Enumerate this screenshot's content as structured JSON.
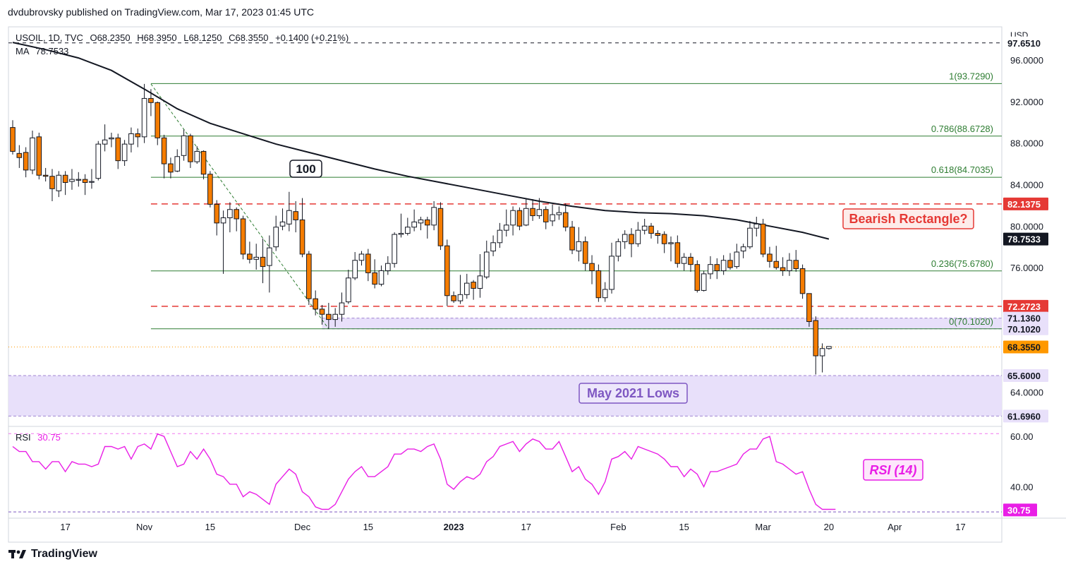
{
  "header": {
    "published": "dvdubrovsky published on TradingView.com, Mar 17, 2023 01:45 UTC"
  },
  "legend": {
    "symbol": "USOIL, 1D, TVC",
    "open": "O68.2350",
    "high": "H68.3950",
    "low": "L68.1250",
    "close": "C68.3550",
    "change": "+0.1400 (+0.21%)",
    "ma_label": "MA",
    "ma_value": "78.7533",
    "rsi_label": "RSI",
    "rsi_value": "30.75"
  },
  "footer": {
    "brand": "TradingView"
  },
  "colors": {
    "up": "#ffffff",
    "down": "#f57c00",
    "candle_border": "#131722",
    "ma": "#131722",
    "fib": "#2e7d32",
    "red_dash": "#e53935",
    "zone": "#e8e0fa",
    "zone_border": "#7e57c2",
    "rsi": "#e91ee6",
    "last_price": "#ff9800"
  },
  "chart_data": [
    {
      "type": "candlestick",
      "title": "USOIL, 1D, TVC",
      "currency": "USD",
      "ylim": [
        60.7,
        99.2
      ],
      "y_ticks": [
        {
          "v": 96,
          "label": "96.0000"
        },
        {
          "v": 92,
          "label": "92.0000"
        },
        {
          "v": 88,
          "label": "88.0000"
        },
        {
          "v": 84,
          "label": "84.0000"
        },
        {
          "v": 80,
          "label": "80.0000"
        },
        {
          "v": 76,
          "label": "76.0000"
        },
        {
          "v": 64,
          "label": "64.0000"
        }
      ],
      "x_ticks": [
        {
          "i": 8,
          "label": "17"
        },
        {
          "i": 20,
          "label": "Nov"
        },
        {
          "i": 30,
          "label": "15"
        },
        {
          "i": 44,
          "label": "Dec"
        },
        {
          "i": 54,
          "label": "15"
        },
        {
          "i": 67,
          "label": "2023"
        },
        {
          "i": 78,
          "label": "17"
        },
        {
          "i": 92,
          "label": "Feb"
        },
        {
          "i": 102,
          "label": "15"
        },
        {
          "i": 114,
          "label": "Mar"
        },
        {
          "i": 124,
          "label": "20"
        },
        {
          "i": 134,
          "label": "Apr"
        },
        {
          "i": 144,
          "label": "17"
        }
      ],
      "candles": [
        [
          89.5,
          87.2,
          90.2,
          86.9
        ],
        [
          87.0,
          86.6,
          87.8,
          85.6
        ],
        [
          87.1,
          85.4,
          87.6,
          84.7
        ],
        [
          85.4,
          88.5,
          89.2,
          85.0
        ],
        [
          88.6,
          84.9,
          89.0,
          84.5
        ],
        [
          84.9,
          84.8,
          85.6,
          84.3
        ],
        [
          84.8,
          83.6,
          85.5,
          82.4
        ],
        [
          83.4,
          84.9,
          85.3,
          82.8
        ],
        [
          84.9,
          84.2,
          85.3,
          83.0
        ],
        [
          84.3,
          84.5,
          85.5,
          83.5
        ],
        [
          84.5,
          84.5,
          85.2,
          83.8
        ],
        [
          84.5,
          84.2,
          85.0,
          83.0
        ],
        [
          84.3,
          84.3,
          85.5,
          83.6
        ],
        [
          84.6,
          87.9,
          88.2,
          84.4
        ],
        [
          87.9,
          88.3,
          89.8,
          87.2
        ],
        [
          88.4,
          88.5,
          89.0,
          87.6
        ],
        [
          88.5,
          86.3,
          88.9,
          85.5
        ],
        [
          86.3,
          87.9,
          88.3,
          85.8
        ],
        [
          87.9,
          88.9,
          89.5,
          87.1
        ],
        [
          88.9,
          88.6,
          89.4,
          87.6
        ],
        [
          88.6,
          92.3,
          93.7,
          88.0
        ],
        [
          92.3,
          91.9,
          93.2,
          90.6
        ],
        [
          91.9,
          88.5,
          92.0,
          87.8
        ],
        [
          88.5,
          86.0,
          88.8,
          84.6
        ],
        [
          86.0,
          85.2,
          86.6,
          84.6
        ],
        [
          85.3,
          86.7,
          87.4,
          85.2
        ],
        [
          86.8,
          88.7,
          89.3,
          86.3
        ],
        [
          88.7,
          86.2,
          88.9,
          85.6
        ],
        [
          86.2,
          87.2,
          87.7,
          86.0
        ],
        [
          87.2,
          85.0,
          87.3,
          84.5
        ],
        [
          85.0,
          82.1,
          85.3,
          81.8
        ],
        [
          82.1,
          80.3,
          82.5,
          79.1
        ],
        [
          80.3,
          80.8,
          81.5,
          75.4
        ],
        [
          80.8,
          81.6,
          82.3,
          79.4
        ],
        [
          81.6,
          80.7,
          81.8,
          79.5
        ],
        [
          80.7,
          77.3,
          81.0,
          76.8
        ],
        [
          77.3,
          76.8,
          78.5,
          76.4
        ],
        [
          76.8,
          77.0,
          78.3,
          75.8
        ],
        [
          77.0,
          76.1,
          78.8,
          74.5
        ],
        [
          76.2,
          77.9,
          79.1,
          73.6
        ],
        [
          78.0,
          79.9,
          81.0,
          77.6
        ],
        [
          80.0,
          80.4,
          81.7,
          79.6
        ],
        [
          80.2,
          81.5,
          83.3,
          79.5
        ],
        [
          81.4,
          80.6,
          82.4,
          79.4
        ],
        [
          80.6,
          77.3,
          82.7,
          77.0
        ],
        [
          77.3,
          73.0,
          77.6,
          72.4
        ],
        [
          73.0,
          72.0,
          73.8,
          71.4
        ],
        [
          72.0,
          71.5,
          72.4,
          70.5
        ],
        [
          71.5,
          71.0,
          72.6,
          70.1
        ],
        [
          71.0,
          71.5,
          72.1,
          70.3
        ],
        [
          71.5,
          72.6,
          73.6,
          70.8
        ],
        [
          72.7,
          75.0,
          75.8,
          72.5
        ],
        [
          75.0,
          76.7,
          77.5,
          74.8
        ],
        [
          76.7,
          77.3,
          77.6,
          76.2
        ],
        [
          77.3,
          75.5,
          77.8,
          74.7
        ],
        [
          75.5,
          74.4,
          76.8,
          74.0
        ],
        [
          74.4,
          75.7,
          76.2,
          74.2
        ],
        [
          75.7,
          76.4,
          77.1,
          75.3
        ],
        [
          76.4,
          79.2,
          79.4,
          76.0
        ],
        [
          79.2,
          79.3,
          81.2,
          78.9
        ],
        [
          79.3,
          79.9,
          80.8,
          79.1
        ],
        [
          79.9,
          80.4,
          81.6,
          79.5
        ],
        [
          80.3,
          80.6,
          80.9,
          79.6
        ],
        [
          80.6,
          80.1,
          80.9,
          78.8
        ],
        [
          80.1,
          81.8,
          82.4,
          79.6
        ],
        [
          81.7,
          78.1,
          82.3,
          77.7
        ],
        [
          78.1,
          73.3,
          78.7,
          72.3
        ],
        [
          73.3,
          72.8,
          73.7,
          72.6
        ],
        [
          72.8,
          73.4,
          75.3,
          72.5
        ],
        [
          73.4,
          74.5,
          75.4,
          73.0
        ],
        [
          74.6,
          74.0,
          74.8,
          72.9
        ],
        [
          74.0,
          75.2,
          77.3,
          73.1
        ],
        [
          75.1,
          77.5,
          78.6,
          74.9
        ],
        [
          77.6,
          78.4,
          79.1,
          77.1
        ],
        [
          78.4,
          79.6,
          80.3,
          77.9
        ],
        [
          79.6,
          80.1,
          81.6,
          79.0
        ],
        [
          80.1,
          81.5,
          81.9,
          79.1
        ],
        [
          81.5,
          80.0,
          81.8,
          79.6
        ],
        [
          80.1,
          81.7,
          82.7,
          80.0
        ],
        [
          81.7,
          81.0,
          82.6,
          80.5
        ],
        [
          81.0,
          81.6,
          82.7,
          80.7
        ],
        [
          81.6,
          80.4,
          81.9,
          79.7
        ],
        [
          80.5,
          81.1,
          82.1,
          80.0
        ],
        [
          81.1,
          81.3,
          81.9,
          80.6
        ],
        [
          81.3,
          79.9,
          82.2,
          79.5
        ],
        [
          79.9,
          77.7,
          80.5,
          77.3
        ],
        [
          77.6,
          78.5,
          79.9,
          76.6
        ],
        [
          78.5,
          76.4,
          79.0,
          75.7
        ],
        [
          76.4,
          75.7,
          77.2,
          74.4
        ],
        [
          75.7,
          73.1,
          76.3,
          72.7
        ],
        [
          73.1,
          73.9,
          74.6,
          72.7
        ],
        [
          73.9,
          77.1,
          78.4,
          73.5
        ],
        [
          77.1,
          78.5,
          78.8,
          76.6
        ],
        [
          78.5,
          79.2,
          79.6,
          77.8
        ],
        [
          79.2,
          78.3,
          79.8,
          77.0
        ],
        [
          78.3,
          79.6,
          80.4,
          78.0
        ],
        [
          79.6,
          80.0,
          80.7,
          79.2
        ],
        [
          80.0,
          79.3,
          80.3,
          78.8
        ],
        [
          79.3,
          79.1,
          79.6,
          78.3
        ],
        [
          79.2,
          78.3,
          79.5,
          77.4
        ],
        [
          78.3,
          78.4,
          79.0,
          76.6
        ],
        [
          78.4,
          76.4,
          79.1,
          76.0
        ],
        [
          76.4,
          77.0,
          77.4,
          75.7
        ],
        [
          77.0,
          76.3,
          77.4,
          75.6
        ],
        [
          76.3,
          73.8,
          76.7,
          73.6
        ],
        [
          73.8,
          75.4,
          75.7,
          73.7
        ],
        [
          75.4,
          76.3,
          77.1,
          74.9
        ],
        [
          76.3,
          75.7,
          76.9,
          74.9
        ],
        [
          75.7,
          76.7,
          77.2,
          75.3
        ],
        [
          76.7,
          76.0,
          77.4,
          75.8
        ],
        [
          76.1,
          77.5,
          78.3,
          75.9
        ],
        [
          77.6,
          78.0,
          78.3,
          76.9
        ],
        [
          78.0,
          79.8,
          80.5,
          77.8
        ],
        [
          79.8,
          80.2,
          80.9,
          79.0
        ],
        [
          80.2,
          77.3,
          80.7,
          77.0
        ],
        [
          77.3,
          76.6,
          78.0,
          76.0
        ],
        [
          76.6,
          76.0,
          78.1,
          75.8
        ],
        [
          76.0,
          75.7,
          77.0,
          75.2
        ],
        [
          75.7,
          76.7,
          77.4,
          75.2
        ],
        [
          76.7,
          75.9,
          77.7,
          75.6
        ],
        [
          75.9,
          73.5,
          76.3,
          73.0
        ],
        [
          73.5,
          70.8,
          73.5,
          70.3
        ],
        [
          70.9,
          67.5,
          71.3,
          65.7
        ],
        [
          67.5,
          68.2,
          68.7,
          65.9
        ],
        [
          68.2,
          68.4,
          68.4,
          68.1
        ]
      ],
      "ma": {
        "name": "MA 100",
        "label": "100",
        "value": "78.7533",
        "points": [
          [
            0,
            97.7
          ],
          [
            5,
            97.0
          ],
          [
            10,
            96.2
          ],
          [
            15,
            95.0
          ],
          [
            20,
            93.2
          ],
          [
            25,
            91.3
          ],
          [
            30,
            89.9
          ],
          [
            35,
            88.9
          ],
          [
            40,
            87.9
          ],
          [
            45,
            87.1
          ],
          [
            50,
            86.3
          ],
          [
            55,
            85.5
          ],
          [
            60,
            84.8
          ],
          [
            65,
            84.2
          ],
          [
            70,
            83.6
          ],
          [
            75,
            83.0
          ],
          [
            80,
            82.4
          ],
          [
            85,
            81.9
          ],
          [
            90,
            81.5
          ],
          [
            95,
            81.3
          ],
          [
            100,
            81.2
          ],
          [
            105,
            81.0
          ],
          [
            110,
            80.6
          ],
          [
            115,
            80.0
          ],
          [
            120,
            79.4
          ],
          [
            124,
            78.75
          ]
        ]
      },
      "fib_levels": [
        {
          "v": 93.729,
          "label": "1(93.7290)"
        },
        {
          "v": 88.6728,
          "label": "0.786(88.6728)"
        },
        {
          "v": 84.7035,
          "label": "0.618(84.7035)"
        },
        {
          "v": 75.678,
          "label": "0.236(75.6780)"
        },
        {
          "v": 70.102,
          "label": "0(70.1020)"
        }
      ],
      "dashed_levels": [
        {
          "v": 82.1375
        },
        {
          "v": 72.2723
        }
      ],
      "top_dashed_level": 97.651,
      "zones": [
        {
          "from": 70.102,
          "to": 71.136
        },
        {
          "from": 61.696,
          "to": 65.6
        }
      ],
      "price_labels": [
        {
          "v": 97.651,
          "text": "97.6510",
          "bg": "#ffffff",
          "fg": "#131722",
          "bold": true
        },
        {
          "v": 82.1375,
          "text": "82.1375",
          "bg": "#e53935",
          "fg": "#ffffff",
          "bold": true
        },
        {
          "v": 78.7533,
          "text": "78.7533",
          "bg": "#131722",
          "fg": "#ffffff",
          "bold": true
        },
        {
          "v": 72.2723,
          "text": "72.2723",
          "bg": "#e53935",
          "fg": "#ffffff",
          "bold": true
        },
        {
          "v": 71.136,
          "text": "71.1360",
          "bg": "#e8e0fa",
          "fg": "#131722",
          "bold": true
        },
        {
          "v": 70.102,
          "text": "70.1020",
          "bg": "#e8e0fa",
          "fg": "#131722",
          "bold": true
        },
        {
          "v": 68.355,
          "text": "68.3550",
          "bg": "#ff9800",
          "fg": "#131722",
          "bold": true
        },
        {
          "v": 65.6,
          "text": "65.6000",
          "bg": "#e8e0fa",
          "fg": "#131722",
          "bold": true
        },
        {
          "v": 61.696,
          "text": "61.6960",
          "bg": "#e8e0fa",
          "fg": "#131722",
          "bold": true
        }
      ],
      "annotations": {
        "bearish": "Bearish Rectangle?",
        "may_lows": "May 2021 Lows"
      }
    },
    {
      "type": "line",
      "title": "RSI (14)",
      "ylim": [
        27.5,
        64.0
      ],
      "y_ticks": [
        {
          "v": 60,
          "label": "60.00"
        },
        {
          "v": 40,
          "label": "40.00"
        }
      ],
      "current": {
        "v": 30.75,
        "text": "30.75"
      },
      "values": [
        56,
        54,
        54,
        50,
        50,
        47,
        50,
        50,
        46,
        50,
        49,
        49,
        48,
        49,
        56,
        56,
        55,
        56,
        51,
        56,
        57,
        55,
        61,
        60,
        54,
        48,
        49,
        54,
        51,
        55,
        51,
        45,
        44,
        41,
        41,
        36,
        38,
        37,
        35,
        33,
        41,
        44,
        47,
        45,
        38,
        36,
        32,
        31,
        31,
        33,
        38,
        43,
        46,
        48,
        44,
        44,
        46,
        48,
        53,
        53,
        55,
        55,
        54,
        56,
        57,
        51,
        41,
        39,
        42,
        44,
        43,
        45,
        50,
        52,
        56,
        57,
        58,
        54,
        57,
        59,
        58,
        55,
        55,
        58,
        52,
        46,
        48,
        43,
        41,
        37,
        42,
        51,
        52,
        54,
        51,
        56,
        55,
        54,
        53,
        51,
        48,
        48,
        44,
        47,
        45,
        40,
        46,
        46,
        47,
        48,
        49,
        53,
        55,
        55,
        59,
        60,
        50,
        49,
        47,
        45,
        46,
        39,
        33,
        31,
        31,
        31
      ]
    }
  ]
}
